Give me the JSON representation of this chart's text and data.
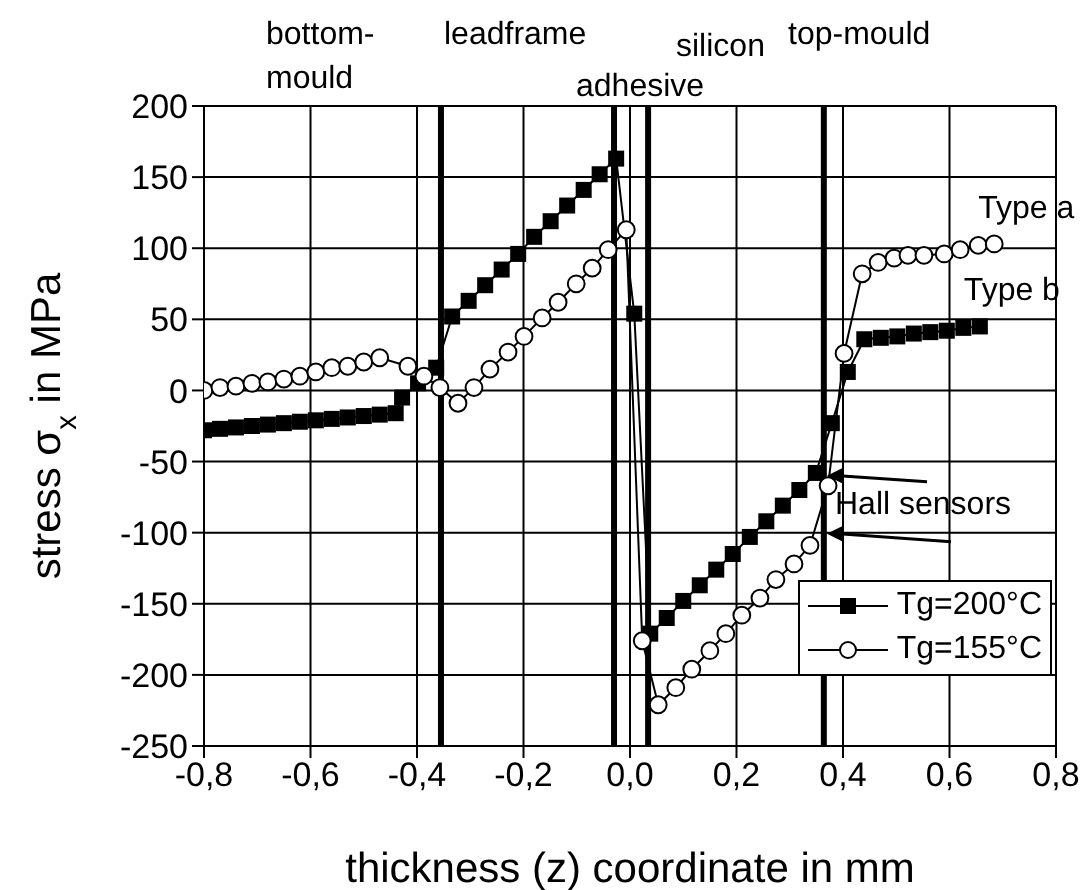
{
  "chart_data": {
    "type": "line",
    "xlabel": "thickness (z) coordinate in mm",
    "ylabel": "stress σ$_{x}$ in MPa",
    "xlim": [
      -0.8,
      0.8
    ],
    "xticks": [
      {
        "value": -0.8,
        "label": "-0,8"
      },
      {
        "value": -0.6,
        "label": "-0,6"
      },
      {
        "value": -0.4,
        "label": "-0,4"
      },
      {
        "value": -0.2,
        "label": "-0,2"
      },
      {
        "value": 0,
        "label": "0,0"
      },
      {
        "value": 0.2,
        "label": "0,2"
      },
      {
        "value": 0.4,
        "label": "0,4"
      },
      {
        "value": 0.6,
        "label": "0,6"
      },
      {
        "value": 0.8,
        "label": "0,8"
      }
    ],
    "ylim": [
      -250,
      200
    ],
    "yticks": [
      -250,
      -200,
      -150,
      -100,
      -50,
      0,
      50,
      100,
      150,
      200
    ],
    "grid": true,
    "legend": "bottom right",
    "series": [
      {
        "name": "Tg=200°C",
        "color": "#000000",
        "marker": "square",
        "x": [
          -0.8,
          -0.77,
          -0.74,
          -0.71,
          -0.68,
          -0.65,
          -0.62,
          -0.59,
          -0.56,
          -0.53,
          -0.5,
          -0.47,
          -0.44,
          -0.428,
          -0.398,
          -0.364,
          -0.334,
          -0.303,
          -0.272,
          -0.241,
          -0.21,
          -0.18,
          -0.149,
          -0.118,
          -0.087,
          -0.057,
          -0.026,
          0.008,
          0.038,
          0.069,
          0.1,
          0.131,
          0.162,
          0.193,
          0.225,
          0.256,
          0.287,
          0.318,
          0.349,
          0.379,
          0.409,
          0.44,
          0.471,
          0.502,
          0.533,
          0.564,
          0.595,
          0.626,
          0.657
        ],
        "values": [
          -28,
          -27,
          -26,
          -25,
          -24,
          -23,
          -22,
          -21,
          -20,
          -19,
          -18,
          -17,
          -16,
          -5,
          5,
          16,
          52,
          63,
          74,
          85,
          96,
          108,
          119,
          130,
          141,
          152,
          163,
          54,
          -171,
          -160,
          -148,
          -137,
          -126,
          -115,
          -103,
          -92,
          -81,
          -70,
          -58,
          -23,
          13,
          36,
          37,
          38,
          40,
          41,
          42,
          44,
          45
        ]
      },
      {
        "name": "Tg=155°C",
        "color": "#000000",
        "marker": "circle",
        "x": [
          -0.8,
          -0.77,
          -0.74,
          -0.71,
          -0.68,
          -0.65,
          -0.62,
          -0.59,
          -0.56,
          -0.53,
          -0.5,
          -0.47,
          -0.417,
          -0.387,
          -0.357,
          -0.323,
          -0.293,
          -0.263,
          -0.229,
          -0.199,
          -0.165,
          -0.135,
          -0.101,
          -0.071,
          -0.041,
          -0.007,
          0.023,
          0.053,
          0.086,
          0.116,
          0.15,
          0.18,
          0.21,
          0.244,
          0.274,
          0.308,
          0.338,
          0.372,
          0.402,
          0.436,
          0.466,
          0.496,
          0.522,
          0.552,
          0.59,
          0.62,
          0.654,
          0.684
        ],
        "values": [
          0,
          2,
          3,
          5,
          6,
          8,
          10,
          13,
          16,
          17,
          20,
          23,
          17,
          10,
          2,
          -9,
          2,
          15,
          27,
          38,
          51,
          62,
          75,
          86,
          99,
          113,
          -176,
          -221,
          -209,
          -196,
          -183,
          -171,
          -158,
          -146,
          -133,
          -122,
          -109,
          -67,
          26,
          82,
          90,
          93,
          95,
          95,
          96,
          99,
          102,
          103
        ]
      }
    ],
    "ref_lines": [
      {
        "axis": "x",
        "value": -0.355,
        "color": "#000000"
      },
      {
        "axis": "x",
        "value": -0.03,
        "color": "#000000"
      },
      {
        "axis": "x",
        "value": 0.034,
        "color": "#000000"
      },
      {
        "axis": "x",
        "value": 0.364,
        "color": "#000000"
      }
    ],
    "annotations": [
      "bottom-mould",
      "leadframe",
      "adhesive",
      "silicon",
      "top-mould",
      {
        "text": "Type a",
        "x": 0.684,
        "y": 103
      },
      {
        "text": "Type b",
        "x": 0.657,
        "y": 45
      },
      {
        "text": "Hall sensors",
        "x": 0.37,
        "y": -60
      }
    ]
  }
}
